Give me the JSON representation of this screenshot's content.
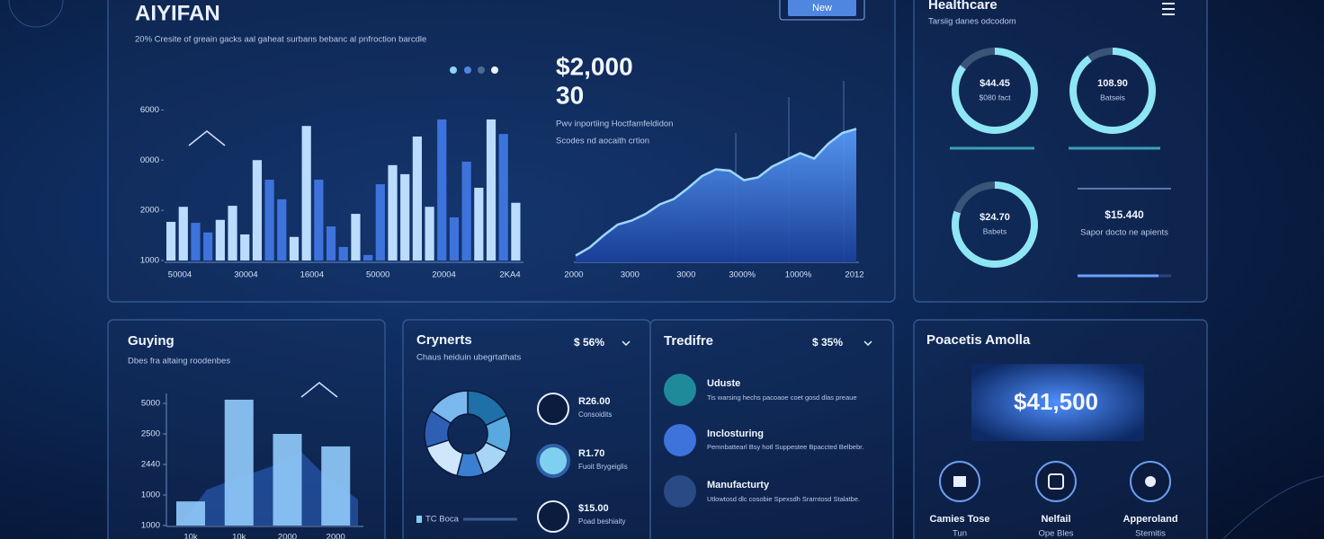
{
  "header": {
    "title": "AIYIFAN",
    "subtitle": "20% Cresite of greain gacks aal gaheat surbans bebanc al pnfroction barcdle",
    "button": "New"
  },
  "revenue": {
    "headline": "$2,000",
    "headline_sub": "30",
    "lines": [
      "Pwv inportiing Hoctfamfeldidon",
      "Scodes nd aocaith crtion"
    ]
  },
  "healthcare": {
    "title": "Healthcare",
    "subtitle": "Tarsiig danes odcodom",
    "gauges": [
      {
        "value": "$44.45",
        "label": "$080 fact",
        "progress": 85
      },
      {
        "value": "108.90",
        "label": "Batseis",
        "progress": 90
      },
      {
        "value": "$24.70",
        "label": "Babets",
        "progress": 80
      }
    ],
    "stat": {
      "value": "$15.440",
      "label": "Sapor docto ne apients"
    }
  },
  "guying": {
    "title": "Guying",
    "subtitle": "Dbes fra altaing roodenbes"
  },
  "crynerts": {
    "title": "Crynerts",
    "badge": "$ 56%",
    "subtitle": "Chaus heiduin ubegrtathats",
    "items": [
      {
        "value": "R26.00",
        "label": "Consoidits"
      },
      {
        "value": "R1.70",
        "label": "Fuoit Brygeiglis"
      },
      {
        "value": "$15.00",
        "label": "Poad beshiaity"
      }
    ],
    "legend": "TC Boca"
  },
  "tredifre": {
    "title": "Tredifre",
    "badge": "$ 35%",
    "items": [
      {
        "title": "Uduste",
        "text": "Tis warsing hechs pacoaoe coet gosd dlas preaue"
      },
      {
        "title": "Inclosturing",
        "text": "Pemnbattearl Bsy hotl Suppestee Bpaccted Belbebr."
      },
      {
        "title": "Manufacturty",
        "text": "Utlowtosd dlc cosobie Spexsdh Srarntosd Stalatbe."
      }
    ]
  },
  "poacetis": {
    "title": "Poacetis Amolla",
    "amount": "$41,500",
    "items": [
      {
        "label": "Camies Tose",
        "sub": "Tun"
      },
      {
        "label": "Nelfail",
        "sub": "Ope Bles"
      },
      {
        "label": "Apperoland",
        "sub": "Stemitis"
      }
    ]
  },
  "chart_data": [
    {
      "type": "bar",
      "values": [
        1770,
        2070,
        1750,
        1560,
        1810,
        2090,
        1520,
        3000,
        2610,
        2220,
        1470,
        3680,
        2610,
        1680,
        1270,
        1930,
        1110,
        2520,
        2900,
        2720,
        3470,
        2070,
        3810,
        1860,
        2970,
        2450,
        3810,
        3520,
        2150
      ],
      "colors": [
        "#bcdcff",
        "#bcdcff",
        "#3e73dc",
        "#3e73dc",
        "#bcdcff",
        "#bcdcff",
        "#bcdcff",
        "#bcdcff",
        "#3e73dc",
        "#3e73dc",
        "#bcdcff",
        "#bcdcff",
        "#3e73dc",
        "#3e73dc",
        "#3e73dc",
        "#bcdcff",
        "#3e73dc",
        "#3e73dc",
        "#bcdcff",
        "#bcdcff",
        "#bcdcff",
        "#bcdcff",
        "#3e73dc",
        "#3e73dc",
        "#3e73dc",
        "#bcdcff",
        "#bcdcff",
        "#3e73dc",
        "#bcdcff"
      ],
      "ylim": [
        1000,
        4400
      ],
      "yticks": [
        1000,
        2000,
        {
          "value": 3000,
          "label": "0000"
        },
        {
          "value": 4000,
          "label": "6000"
        }
      ],
      "x_labels": [
        "50004",
        "30004",
        "16004",
        "50000",
        "20004",
        "2KA4"
      ]
    },
    {
      "type": "area",
      "values": [
        5,
        11,
        20,
        28,
        31,
        36,
        43,
        47,
        55,
        64,
        69,
        68,
        61,
        63,
        71,
        76,
        81,
        77,
        88,
        96,
        99
      ],
      "color": "#4d8ff0",
      "ylim": [
        0,
        100
      ],
      "x_labels": [
        "2000",
        "3000",
        "3000",
        "3000%",
        "1000%",
        "2012"
      ]
    },
    {
      "type": "bar",
      "values": [
        790,
        4120,
        3000,
        2590
      ],
      "color": "#8ec8f8",
      "ylim": [
        0,
        4400
      ],
      "yticks": [
        {
          "value": 0,
          "label": "1000"
        },
        1000,
        {
          "value": 2000,
          "label": "2440"
        },
        {
          "value": 3000,
          "label": "2500"
        },
        {
          "value": 4000,
          "label": "5000"
        }
      ],
      "x_labels": [
        "10k",
        "10k",
        "2000",
        "2000"
      ]
    },
    {
      "type": "pie",
      "values": [
        18,
        14,
        12,
        10,
        16,
        14,
        16
      ],
      "colors": [
        "#1f6fa8",
        "#5aa8e0",
        "#a8d4f5",
        "#3b7fd0",
        "#cfe6fb",
        "#2f5fb5",
        "#7ab8ef"
      ]
    }
  ]
}
